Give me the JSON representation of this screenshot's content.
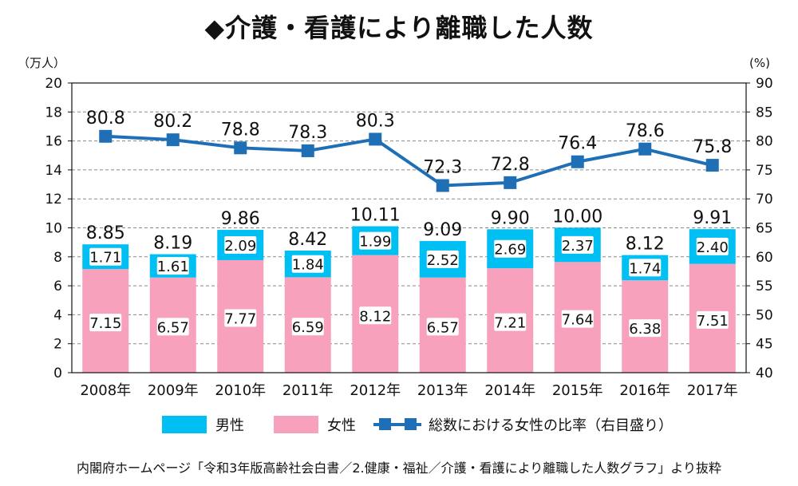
{
  "title": "◆介護・看護により離職した人数",
  "source": "内閣府ホームページ「令和3年版高齢社会白書／2.健康・福祉／介護・看護により離職した人数グラフ」より抜粋",
  "colors": {
    "male": "#00bff3",
    "female": "#f7a1bd",
    "line": "#1f6fb6",
    "grid": "#888888",
    "title_diamond": "#1aa34a"
  },
  "chart_data": {
    "type": "bar",
    "stacked": true,
    "categories": [
      "2008年",
      "2009年",
      "2010年",
      "2011年",
      "2012年",
      "2013年",
      "2014年",
      "2015年",
      "2016年",
      "2017年"
    ],
    "series": [
      {
        "name": "女性",
        "values": [
          7.15,
          6.57,
          7.77,
          6.59,
          8.12,
          6.57,
          7.21,
          7.64,
          6.38,
          7.51
        ],
        "labels": [
          "7.15",
          "6.57",
          "7.77",
          "6.59",
          "8.12",
          "6.57",
          "7.21",
          "7.64",
          "6.38",
          "7.51"
        ]
      },
      {
        "name": "男性",
        "values": [
          1.71,
          1.61,
          2.09,
          1.84,
          1.99,
          2.52,
          2.69,
          2.37,
          1.74,
          2.4
        ],
        "labels": [
          "1.71",
          "1.61",
          "2.09",
          "1.84",
          "1.99",
          "2.52",
          "2.69",
          "2.37",
          "1.74",
          "2.40"
        ]
      }
    ],
    "totals": [
      8.85,
      8.19,
      9.86,
      8.42,
      10.11,
      9.09,
      9.9,
      10.0,
      8.12,
      9.91
    ],
    "total_labels": [
      "8.85",
      "8.19",
      "9.86",
      "8.42",
      "10.11",
      "9.09",
      "9.90",
      "10.00",
      "8.12",
      "9.91"
    ],
    "line_series": {
      "name": "総数における女性の比率（右目盛り）",
      "values": [
        80.8,
        80.2,
        78.8,
        78.3,
        80.3,
        72.3,
        72.8,
        76.4,
        78.6,
        75.8
      ],
      "labels": [
        "80.8",
        "80.2",
        "78.8",
        "78.3",
        "80.3",
        "72.3",
        "72.8",
        "76.4",
        "78.6",
        "75.8"
      ],
      "axis": "right"
    },
    "y_left": {
      "unit": "（万人）",
      "min": 0,
      "max": 20,
      "ticks": [
        "0",
        "2",
        "4",
        "6",
        "8",
        "10",
        "12",
        "14",
        "16",
        "18",
        "20"
      ]
    },
    "y_right": {
      "unit": "(%)",
      "min": 40,
      "max": 90,
      "ticks": [
        "40",
        "45",
        "50",
        "55",
        "60",
        "65",
        "70",
        "75",
        "80",
        "85",
        "90"
      ]
    },
    "grid": true,
    "legend": {
      "placement": "bottom",
      "items": [
        "男性",
        "女性",
        "総数における女性の比率（右目盛り）"
      ]
    }
  }
}
